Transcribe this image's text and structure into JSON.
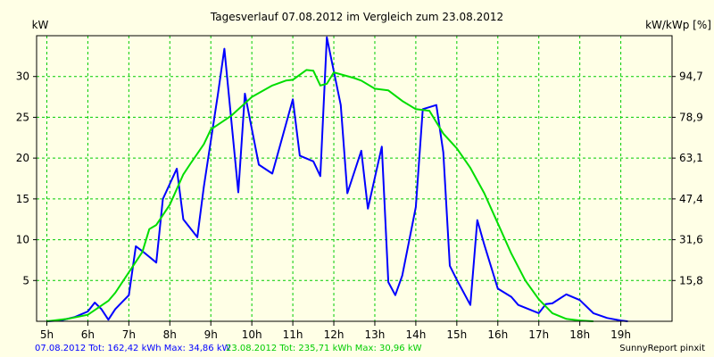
{
  "chart_data": {
    "type": "line",
    "title": "Tagesverlauf 07.08.2012 im Vergleich zum 23.08.2012",
    "ylabel_left": "kW",
    "ylabel_right": "kW/kWp [%]",
    "x_ticks": [
      "5h",
      "6h",
      "7h",
      "8h",
      "9h",
      "10h",
      "11h",
      "12h",
      "13h",
      "14h",
      "15h",
      "16h",
      "17h",
      "18h",
      "19h"
    ],
    "xlim": [
      4.75,
      20.25
    ],
    "ylim": [
      0,
      35
    ],
    "y_ticks": [
      "5",
      "10",
      "15",
      "20",
      "25",
      "30"
    ],
    "y_ticks_right": [
      "15,8",
      "31,6",
      "47,4",
      "63,1",
      "78,9",
      "94,7"
    ],
    "grid": true,
    "series": [
      {
        "name": "07.08.2012",
        "color": "#0000ff",
        "points": [
          [
            5.0,
            0
          ],
          [
            5.33,
            0.1
          ],
          [
            5.67,
            0.5
          ],
          [
            6.0,
            1.2
          ],
          [
            6.17,
            2.3
          ],
          [
            6.33,
            1.5
          ],
          [
            6.5,
            0.2
          ],
          [
            6.67,
            1.5
          ],
          [
            7.0,
            3.2
          ],
          [
            7.17,
            9.2
          ],
          [
            7.33,
            8.6
          ],
          [
            7.67,
            7.2
          ],
          [
            7.83,
            15
          ],
          [
            8.17,
            18.7
          ],
          [
            8.33,
            12.5
          ],
          [
            8.67,
            10.3
          ],
          [
            8.83,
            16.5
          ],
          [
            9.17,
            27.7
          ],
          [
            9.33,
            33.4
          ],
          [
            9.67,
            15.8
          ],
          [
            9.83,
            27.9
          ],
          [
            10.17,
            19.2
          ],
          [
            10.5,
            18.1
          ],
          [
            11.0,
            27.2
          ],
          [
            11.17,
            20.3
          ],
          [
            11.5,
            19.6
          ],
          [
            11.67,
            17.8
          ],
          [
            11.83,
            34.8
          ],
          [
            12.17,
            26.5
          ],
          [
            12.33,
            15.7
          ],
          [
            12.67,
            20.9
          ],
          [
            12.83,
            13.8
          ],
          [
            13.17,
            21.4
          ],
          [
            13.33,
            4.8
          ],
          [
            13.5,
            3.2
          ],
          [
            13.67,
            5.6
          ],
          [
            14.0,
            14.0
          ],
          [
            14.17,
            26
          ],
          [
            14.5,
            26.5
          ],
          [
            14.67,
            20.7
          ],
          [
            14.83,
            6.8
          ],
          [
            15.0,
            5.1
          ],
          [
            15.33,
            2.0
          ],
          [
            15.5,
            12.4
          ],
          [
            15.67,
            9.4
          ],
          [
            16.0,
            4.0
          ],
          [
            16.33,
            3.0
          ],
          [
            16.5,
            2.0
          ],
          [
            17.0,
            1.0
          ],
          [
            17.17,
            2.1
          ],
          [
            17.33,
            2.2
          ],
          [
            17.67,
            3.3
          ],
          [
            18.0,
            2.6
          ],
          [
            18.33,
            1.0
          ],
          [
            18.67,
            0.4
          ],
          [
            19.0,
            0.1
          ],
          [
            19.17,
            0
          ]
        ]
      },
      {
        "name": "23.08.2012",
        "color": "#00dd00",
        "points": [
          [
            5.0,
            0
          ],
          [
            5.5,
            0.3
          ],
          [
            6.0,
            0.8
          ],
          [
            6.5,
            2.5
          ],
          [
            6.67,
            3.5
          ],
          [
            7.0,
            6
          ],
          [
            7.33,
            8.5
          ],
          [
            7.5,
            11.3
          ],
          [
            7.67,
            11.8
          ],
          [
            8.0,
            14.3
          ],
          [
            8.33,
            18
          ],
          [
            8.5,
            19.3
          ],
          [
            8.83,
            21.7
          ],
          [
            9.0,
            23.5
          ],
          [
            9.5,
            25.2
          ],
          [
            10.0,
            27.5
          ],
          [
            10.5,
            28.9
          ],
          [
            10.83,
            29.5
          ],
          [
            11.0,
            29.6
          ],
          [
            11.33,
            30.8
          ],
          [
            11.5,
            30.7
          ],
          [
            11.67,
            28.9
          ],
          [
            11.83,
            29.1
          ],
          [
            12.0,
            30.5
          ],
          [
            12.5,
            29.8
          ],
          [
            12.67,
            29.5
          ],
          [
            13.0,
            28.5
          ],
          [
            13.33,
            28.3
          ],
          [
            13.67,
            27
          ],
          [
            14.0,
            26.0
          ],
          [
            14.33,
            25.8
          ],
          [
            14.67,
            23
          ],
          [
            15.0,
            21.2
          ],
          [
            15.33,
            18.8
          ],
          [
            15.67,
            15.7
          ],
          [
            16.0,
            12.0
          ],
          [
            16.33,
            8.3
          ],
          [
            16.67,
            5.0
          ],
          [
            17.0,
            2.7
          ],
          [
            17.33,
            1.0
          ],
          [
            17.67,
            0.3
          ],
          [
            18.0,
            0.1
          ],
          [
            18.33,
            0
          ]
        ]
      }
    ]
  },
  "footer": {
    "series1": "07.08.2012 Tot: 162,42 kWh Max: 34,86 kW",
    "series2": "23.08.2012 Tot: 235,71 kWh Max: 30,96 kW",
    "credit": "SunnyReport pinxit"
  }
}
